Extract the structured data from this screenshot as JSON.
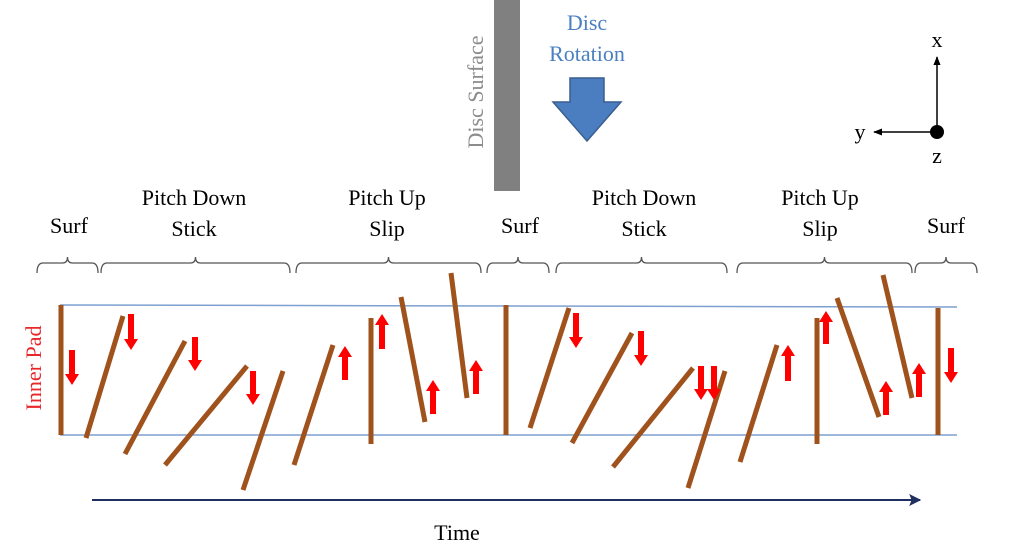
{
  "labels": {
    "disc_surface": "Disc Surface",
    "disc_rotation_line1": "Disc",
    "disc_rotation_line2": "Rotation",
    "axis_x": "x",
    "axis_y": "y",
    "axis_z": "z",
    "time": "Time",
    "inner_pad": "Inner Pad"
  },
  "phases": [
    {
      "line1": "Surf",
      "line2": ""
    },
    {
      "line1": "Pitch Down",
      "line2": "Stick"
    },
    {
      "line1": "Pitch Up",
      "line2": "Slip"
    },
    {
      "line1": "Surf",
      "line2": ""
    },
    {
      "line1": "Pitch Down",
      "line2": "Stick"
    },
    {
      "line1": "Pitch Up",
      "line2": "Slip"
    },
    {
      "line1": "Surf",
      "line2": ""
    }
  ],
  "pads": [
    {
      "tilt": "vertical",
      "arrow": "down"
    },
    {
      "tilt": "leaning-right",
      "arrow": "down"
    },
    {
      "tilt": "leaning-right",
      "arrow": "down"
    },
    {
      "tilt": "leaning-right",
      "arrow": "down"
    },
    {
      "tilt": "leaning-right",
      "arrow": "none"
    },
    {
      "tilt": "leaning-right",
      "arrow": "up"
    },
    {
      "tilt": "vertical",
      "arrow": "up"
    },
    {
      "tilt": "leaning-left",
      "arrow": "up"
    },
    {
      "tilt": "leaning-left",
      "arrow": "up"
    },
    {
      "tilt": "vertical",
      "arrow": "none"
    },
    {
      "tilt": "leaning-right",
      "arrow": "down"
    },
    {
      "tilt": "leaning-right",
      "arrow": "down"
    },
    {
      "tilt": "leaning-right",
      "arrow": "down"
    },
    {
      "tilt": "leaning-right",
      "arrow": "down"
    },
    {
      "tilt": "leaning-right",
      "arrow": "up"
    },
    {
      "tilt": "vertical",
      "arrow": "up"
    },
    {
      "tilt": "leaning-left",
      "arrow": "up"
    },
    {
      "tilt": "leaning-left",
      "arrow": "up"
    },
    {
      "tilt": "vertical",
      "arrow": "down"
    }
  ],
  "colors": {
    "pad": "#a0521d",
    "force_arrow": "#ff0000",
    "inner_pad_label": "#e8272a",
    "rotation_label": "#4a7fc1",
    "rotation_arrow_fill": "#4a7ec0",
    "rotation_arrow_stroke": "#3a5f8f",
    "disc_bar": "#808080",
    "disc_label": "#8c8c8c",
    "guide_line": "#7da0d0",
    "time_arrow": "#1f2f5f",
    "text": "#000000"
  }
}
